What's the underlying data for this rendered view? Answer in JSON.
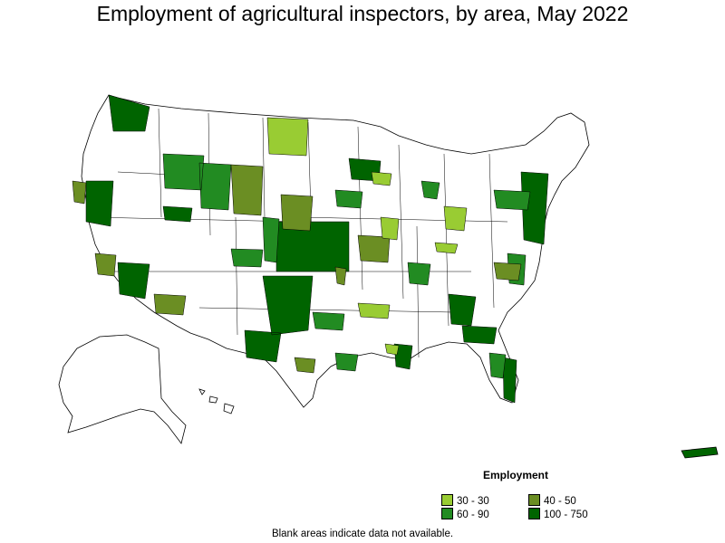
{
  "title": "Employment of agricultural inspectors, by area, May 2022",
  "legend": {
    "title": "Employment",
    "items": [
      {
        "label": "30 - 30",
        "color": "#99cc33"
      },
      {
        "label": "40 - 50",
        "color": "#6b8e23"
      },
      {
        "label": "60 - 90",
        "color": "#228b22"
      },
      {
        "label": "100 - 750",
        "color": "#006400"
      }
    ]
  },
  "note": "Blank areas indicate data not available.",
  "map": {
    "region": "United States, Alaska, Hawaii, Puerto Rico",
    "unit": "metropolitan and nonmetropolitan areas",
    "fill_none": "#ffffff",
    "stroke": "#000000"
  }
}
